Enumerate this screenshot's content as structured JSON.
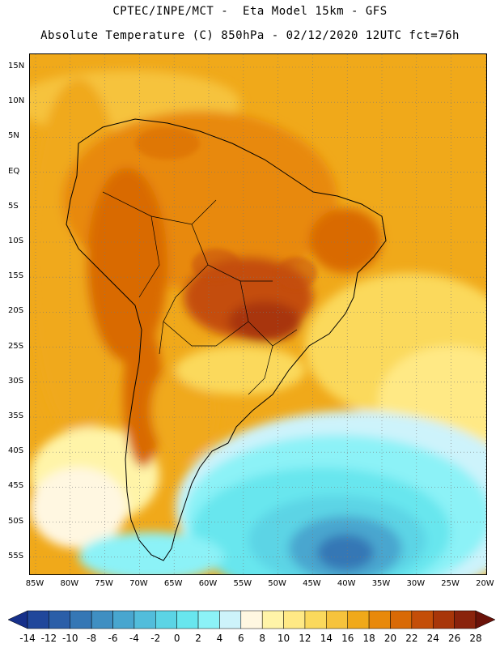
{
  "header": {
    "line1": "CPTEC/INPE/MCT -  Eta Model 15km - GFS",
    "line2": "Absolute Temperature (C) 850hPa - 02/12/2020 12UTC fct=76h"
  },
  "map": {
    "latitude_labels": [
      "15N",
      "10N",
      "5N",
      "EQ",
      "5S",
      "10S",
      "15S",
      "20S",
      "25S",
      "30S",
      "35S",
      "40S",
      "45S",
      "50S",
      "55S"
    ],
    "longitude_labels": [
      "85W",
      "80W",
      "75W",
      "70W",
      "65W",
      "60W",
      "55W",
      "50W",
      "45W",
      "40W",
      "35W",
      "30W",
      "25W",
      "20W"
    ],
    "grid_style": "dotted"
  },
  "colorbar": {
    "labels": [
      "-14",
      "-12",
      "-10",
      "-8",
      "-6",
      "-4",
      "-2",
      "0",
      "2",
      "4",
      "6",
      "8",
      "10",
      "12",
      "14",
      "16",
      "18",
      "20",
      "22",
      "24",
      "26",
      "28"
    ],
    "colors": [
      "#16308a",
      "#20479b",
      "#2b5ea8",
      "#3577b5",
      "#3f8fc2",
      "#48a6cf",
      "#52bddb",
      "#5bd4e5",
      "#68e6ee",
      "#8cf2f7",
      "#cdf3fb",
      "#fff7e1",
      "#fff4a8",
      "#ffe985",
      "#fbd95c",
      "#f6c33c",
      "#f0a91a",
      "#e8890a",
      "#d96a06",
      "#c44e08",
      "#a83609",
      "#8a230c",
      "#6a1209"
    ]
  }
}
